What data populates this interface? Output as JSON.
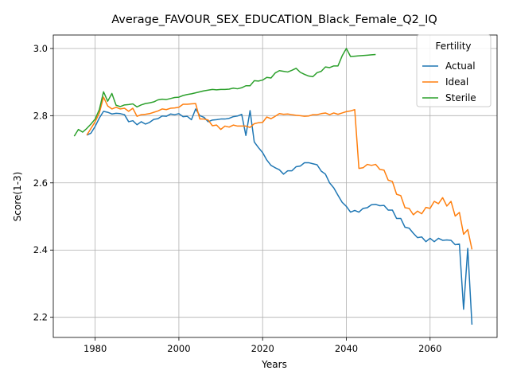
{
  "chart_data": {
    "type": "line",
    "title": "Average_FAVOUR_SEX_EDUCATION_Black_Female_Q2_IQ",
    "xlabel": "Years",
    "ylabel": "Score(1-3)",
    "xlim": [
      1970,
      2076
    ],
    "ylim": [
      2.14,
      3.04
    ],
    "xticks": [
      1980,
      2000,
      2020,
      2040,
      2060
    ],
    "yticks": [
      2.2,
      2.4,
      2.6,
      2.8,
      3.0
    ],
    "ytick_labels": [
      "2.2",
      "2.4",
      "2.6",
      "2.8",
      "3.0"
    ],
    "grid": true,
    "legend": {
      "title": "Fertility",
      "position": "top-right"
    },
    "series": [
      {
        "name": "Actual",
        "color": "#1f77b4",
        "points": [
          [
            1978,
            2.742
          ],
          [
            1979,
            2.748
          ],
          [
            1980,
            2.768
          ],
          [
            1981,
            2.793
          ],
          [
            1982,
            2.813
          ],
          [
            1983,
            2.81
          ],
          [
            1984,
            2.805
          ],
          [
            1985,
            2.807
          ],
          [
            1986,
            2.806
          ],
          [
            1987,
            2.803
          ],
          [
            1988,
            2.782
          ],
          [
            1989,
            2.785
          ],
          [
            1990,
            2.773
          ],
          [
            1991,
            2.782
          ],
          [
            1992,
            2.775
          ],
          [
            1993,
            2.78
          ],
          [
            1994,
            2.789
          ],
          [
            1995,
            2.791
          ],
          [
            1996,
            2.799
          ],
          [
            1997,
            2.798
          ],
          [
            1998,
            2.805
          ],
          [
            1999,
            2.803
          ],
          [
            2000,
            2.806
          ],
          [
            2001,
            2.797
          ],
          [
            2002,
            2.798
          ],
          [
            2003,
            2.788
          ],
          [
            2004,
            2.82
          ],
          [
            2005,
            2.8
          ],
          [
            2006,
            2.795
          ],
          [
            2007,
            2.782
          ],
          [
            2008,
            2.787
          ],
          [
            2009,
            2.788
          ],
          [
            2010,
            2.79
          ],
          [
            2011,
            2.79
          ],
          [
            2012,
            2.792
          ],
          [
            2013,
            2.797
          ],
          [
            2014,
            2.799
          ],
          [
            2015,
            2.804
          ],
          [
            2016,
            2.741
          ],
          [
            2017,
            2.815
          ],
          [
            2018,
            2.722
          ],
          [
            2019,
            2.705
          ],
          [
            2020,
            2.69
          ],
          [
            2021,
            2.668
          ],
          [
            2022,
            2.652
          ],
          [
            2023,
            2.645
          ],
          [
            2024,
            2.639
          ],
          [
            2025,
            2.626
          ],
          [
            2026,
            2.636
          ],
          [
            2027,
            2.636
          ],
          [
            2028,
            2.648
          ],
          [
            2029,
            2.65
          ],
          [
            2030,
            2.66
          ],
          [
            2031,
            2.66
          ],
          [
            2032,
            2.657
          ],
          [
            2033,
            2.654
          ],
          [
            2034,
            2.635
          ],
          [
            2035,
            2.626
          ],
          [
            2036,
            2.6
          ],
          [
            2037,
            2.585
          ],
          [
            2038,
            2.563
          ],
          [
            2039,
            2.542
          ],
          [
            2040,
            2.53
          ],
          [
            2041,
            2.513
          ],
          [
            2042,
            2.518
          ],
          [
            2043,
            2.513
          ],
          [
            2044,
            2.524
          ],
          [
            2045,
            2.526
          ],
          [
            2046,
            2.535
          ],
          [
            2047,
            2.536
          ],
          [
            2048,
            2.532
          ],
          [
            2049,
            2.533
          ],
          [
            2050,
            2.519
          ],
          [
            2051,
            2.519
          ],
          [
            2052,
            2.494
          ],
          [
            2053,
            2.494
          ],
          [
            2054,
            2.468
          ],
          [
            2055,
            2.465
          ],
          [
            2056,
            2.45
          ],
          [
            2057,
            2.437
          ],
          [
            2058,
            2.439
          ],
          [
            2059,
            2.425
          ],
          [
            2060,
            2.435
          ],
          [
            2061,
            2.425
          ],
          [
            2062,
            2.435
          ],
          [
            2063,
            2.429
          ],
          [
            2064,
            2.43
          ],
          [
            2065,
            2.429
          ],
          [
            2066,
            2.416
          ],
          [
            2067,
            2.418
          ],
          [
            2068,
            2.224
          ],
          [
            2069,
            2.405
          ],
          [
            2070,
            2.178
          ]
        ]
      },
      {
        "name": "Ideal",
        "color": "#ff7f0e",
        "points": [
          [
            1978,
            2.742
          ],
          [
            1979,
            2.762
          ],
          [
            1980,
            2.782
          ],
          [
            1981,
            2.808
          ],
          [
            1982,
            2.855
          ],
          [
            1983,
            2.829
          ],
          [
            1984,
            2.82
          ],
          [
            1985,
            2.825
          ],
          [
            1986,
            2.82
          ],
          [
            1987,
            2.822
          ],
          [
            1988,
            2.813
          ],
          [
            1989,
            2.822
          ],
          [
            1990,
            2.798
          ],
          [
            1991,
            2.803
          ],
          [
            1992,
            2.804
          ],
          [
            1993,
            2.806
          ],
          [
            1994,
            2.81
          ],
          [
            1995,
            2.814
          ],
          [
            1996,
            2.82
          ],
          [
            1997,
            2.818
          ],
          [
            1998,
            2.822
          ],
          [
            1999,
            2.823
          ],
          [
            2000,
            2.825
          ],
          [
            2001,
            2.834
          ],
          [
            2002,
            2.834
          ],
          [
            2003,
            2.835
          ],
          [
            2004,
            2.836
          ],
          [
            2005,
            2.79
          ],
          [
            2006,
            2.79
          ],
          [
            2007,
            2.787
          ],
          [
            2008,
            2.77
          ],
          [
            2009,
            2.772
          ],
          [
            2010,
            2.759
          ],
          [
            2011,
            2.769
          ],
          [
            2012,
            2.766
          ],
          [
            2013,
            2.772
          ],
          [
            2014,
            2.769
          ],
          [
            2015,
            2.769
          ],
          [
            2016,
            2.769
          ],
          [
            2017,
            2.765
          ],
          [
            2018,
            2.776
          ],
          [
            2019,
            2.779
          ],
          [
            2020,
            2.78
          ],
          [
            2021,
            2.796
          ],
          [
            2022,
            2.791
          ],
          [
            2023,
            2.798
          ],
          [
            2024,
            2.806
          ],
          [
            2025,
            2.804
          ],
          [
            2026,
            2.805
          ],
          [
            2027,
            2.803
          ],
          [
            2028,
            2.801
          ],
          [
            2029,
            2.8
          ],
          [
            2030,
            2.798
          ],
          [
            2031,
            2.799
          ],
          [
            2032,
            2.803
          ],
          [
            2033,
            2.803
          ],
          [
            2034,
            2.806
          ],
          [
            2035,
            2.808
          ],
          [
            2036,
            2.803
          ],
          [
            2037,
            2.808
          ],
          [
            2038,
            2.804
          ],
          [
            2039,
            2.808
          ],
          [
            2040,
            2.812
          ],
          [
            2041,
            2.814
          ],
          [
            2042,
            2.818
          ],
          [
            2043,
            2.643
          ],
          [
            2044,
            2.645
          ],
          [
            2045,
            2.655
          ],
          [
            2046,
            2.652
          ],
          [
            2047,
            2.655
          ],
          [
            2048,
            2.64
          ],
          [
            2049,
            2.638
          ],
          [
            2050,
            2.608
          ],
          [
            2051,
            2.604
          ],
          [
            2052,
            2.566
          ],
          [
            2053,
            2.562
          ],
          [
            2054,
            2.526
          ],
          [
            2055,
            2.524
          ],
          [
            2056,
            2.505
          ],
          [
            2057,
            2.516
          ],
          [
            2058,
            2.508
          ],
          [
            2059,
            2.527
          ],
          [
            2060,
            2.524
          ],
          [
            2061,
            2.545
          ],
          [
            2062,
            2.538
          ],
          [
            2063,
            2.556
          ],
          [
            2064,
            2.531
          ],
          [
            2065,
            2.545
          ],
          [
            2066,
            2.501
          ],
          [
            2067,
            2.512
          ],
          [
            2068,
            2.447
          ],
          [
            2069,
            2.461
          ],
          [
            2070,
            2.402
          ]
        ]
      },
      {
        "name": "Sterile",
        "color": "#2ca02c",
        "points": [
          [
            1975,
            2.739
          ],
          [
            1976,
            2.759
          ],
          [
            1977,
            2.751
          ],
          [
            1978,
            2.762
          ],
          [
            1979,
            2.775
          ],
          [
            1980,
            2.79
          ],
          [
            1981,
            2.818
          ],
          [
            1982,
            2.871
          ],
          [
            1983,
            2.843
          ],
          [
            1984,
            2.866
          ],
          [
            1985,
            2.831
          ],
          [
            1986,
            2.827
          ],
          [
            1987,
            2.832
          ],
          [
            1988,
            2.833
          ],
          [
            1989,
            2.835
          ],
          [
            1990,
            2.826
          ],
          [
            1991,
            2.832
          ],
          [
            1992,
            2.836
          ],
          [
            1993,
            2.838
          ],
          [
            1994,
            2.841
          ],
          [
            1995,
            2.847
          ],
          [
            1996,
            2.849
          ],
          [
            1997,
            2.848
          ],
          [
            1998,
            2.851
          ],
          [
            1999,
            2.854
          ],
          [
            2000,
            2.855
          ],
          [
            2001,
            2.86
          ],
          [
            2002,
            2.863
          ],
          [
            2003,
            2.865
          ],
          [
            2004,
            2.868
          ],
          [
            2005,
            2.871
          ],
          [
            2006,
            2.874
          ],
          [
            2007,
            2.876
          ],
          [
            2008,
            2.878
          ],
          [
            2009,
            2.877
          ],
          [
            2010,
            2.878
          ],
          [
            2011,
            2.878
          ],
          [
            2012,
            2.879
          ],
          [
            2013,
            2.882
          ],
          [
            2014,
            2.88
          ],
          [
            2015,
            2.883
          ],
          [
            2016,
            2.889
          ],
          [
            2017,
            2.889
          ],
          [
            2018,
            2.904
          ],
          [
            2019,
            2.903
          ],
          [
            2020,
            2.906
          ],
          [
            2021,
            2.914
          ],
          [
            2022,
            2.912
          ],
          [
            2023,
            2.927
          ],
          [
            2024,
            2.934
          ],
          [
            2025,
            2.932
          ],
          [
            2026,
            2.93
          ],
          [
            2027,
            2.935
          ],
          [
            2028,
            2.941
          ],
          [
            2029,
            2.929
          ],
          [
            2030,
            2.923
          ],
          [
            2031,
            2.918
          ],
          [
            2032,
            2.916
          ],
          [
            2033,
            2.928
          ],
          [
            2034,
            2.932
          ],
          [
            2035,
            2.945
          ],
          [
            2036,
            2.943
          ],
          [
            2037,
            2.948
          ],
          [
            2038,
            2.948
          ],
          [
            2039,
            2.978
          ],
          [
            2040,
            3.0
          ],
          [
            2041,
            2.976
          ],
          [
            2042,
            2.977
          ],
          [
            2043,
            2.978
          ],
          [
            2044,
            2.979
          ],
          [
            2045,
            2.98
          ],
          [
            2046,
            2.981
          ],
          [
            2047,
            2.982
          ]
        ]
      }
    ]
  }
}
